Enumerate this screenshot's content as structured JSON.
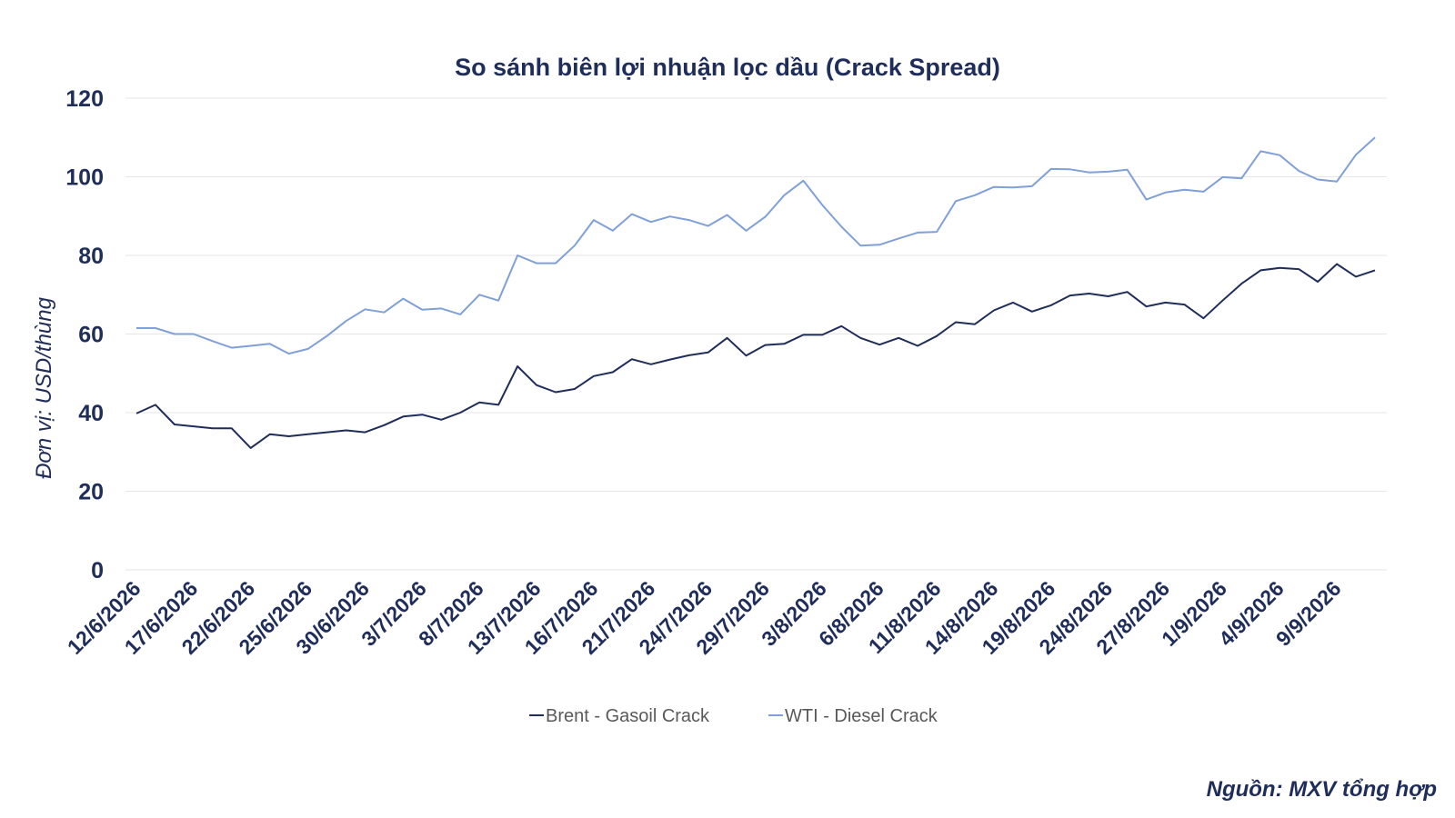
{
  "chart_data": {
    "type": "line",
    "title": "So sánh biên lợi nhuận lọc dầu (Crack Spread)",
    "xlabel": "",
    "ylabel": "Đơn vị: USD/thùng",
    "ylim": [
      0,
      120
    ],
    "yticks": [
      0,
      20,
      40,
      60,
      80,
      100,
      120
    ],
    "grid": true,
    "legend_position": "bottom",
    "x_tick_labels": [
      "12/6/2026",
      "17/6/2026",
      "22/6/2026",
      "25/6/2026",
      "30/6/2026",
      "3/7/2026",
      "8/7/2026",
      "13/7/2026",
      "16/7/2026",
      "21/7/2026",
      "24/7/2026",
      "29/7/2026",
      "3/8/2026",
      "6/8/2026",
      "11/8/2026",
      "14/8/2026",
      "19/8/2026",
      "24/8/2026",
      "27/8/2026",
      "1/9/2026",
      "4/9/2026",
      "9/9/2026"
    ],
    "x_tick_every": 3,
    "series": [
      {
        "name": "Brent - Gasoil Crack",
        "color": "#1f2d5a",
        "values": [
          39.8,
          42.0,
          37.0,
          36.5,
          36.0,
          36.0,
          31.0,
          34.5,
          34.0,
          34.5,
          35.0,
          35.5,
          35.0,
          36.8,
          39.0,
          39.5,
          38.2,
          40.0,
          42.6,
          42.0,
          51.8,
          47.0,
          45.2,
          46.0,
          49.3,
          50.3,
          53.6,
          52.3,
          53.5,
          54.6,
          55.3,
          59.0,
          54.5,
          57.2,
          57.5,
          59.8,
          59.8,
          62.0,
          59.0,
          57.3,
          59.0,
          57.0,
          59.5,
          63.0,
          62.5,
          66.0,
          68.0,
          65.7,
          67.3,
          69.8,
          70.3,
          69.6,
          70.7,
          67.0,
          68.0,
          67.5,
          64.0,
          68.5,
          72.8,
          76.2,
          76.8,
          76.5,
          73.3,
          77.8,
          74.6,
          76.2
        ]
      },
      {
        "name": "WTI - Diesel Crack",
        "color": "#7fa0d8",
        "values": [
          61.5,
          61.5,
          60.0,
          60.0,
          58.2,
          56.5,
          57.0,
          57.5,
          55.0,
          56.2,
          59.5,
          63.3,
          66.3,
          65.5,
          69.0,
          66.2,
          66.5,
          65.0,
          70.0,
          68.5,
          80.0,
          78.0,
          78.0,
          82.5,
          89.0,
          86.3,
          90.5,
          88.5,
          89.9,
          89.0,
          87.5,
          90.3,
          86.3,
          89.8,
          95.3,
          99.0,
          92.8,
          87.3,
          82.5,
          82.7,
          84.3,
          85.8,
          86.0,
          93.8,
          95.3,
          97.4,
          97.3,
          97.6,
          102.0,
          101.9,
          101.1,
          101.3,
          101.8,
          94.2,
          96.0,
          96.7,
          96.2,
          99.9,
          99.6,
          106.5,
          105.5,
          101.5,
          99.3,
          98.8,
          105.6,
          110.0
        ]
      }
    ]
  },
  "source": "Nguồn: MXV tổng hợp"
}
